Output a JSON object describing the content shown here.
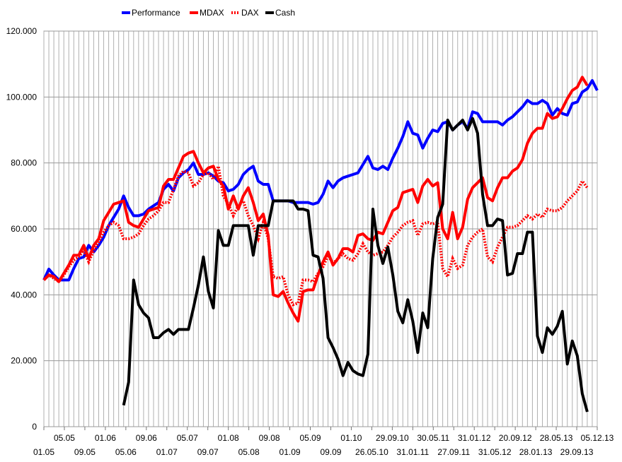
{
  "chart_data": {
    "type": "line",
    "title": "",
    "xlabel": "",
    "ylabel": "",
    "ylim": [
      0,
      120000
    ],
    "y_ticks": [
      "0",
      "20.000",
      "40.000",
      "60.000",
      "80.000",
      "100.000",
      "120.000"
    ],
    "x_tick_labels": [
      "01.05",
      "05.05",
      "09.05",
      "01.06",
      "05.06",
      "09.06",
      "01.07",
      "05.07",
      "09.07",
      "01.08",
      "05.08",
      "09.08",
      "01.09",
      "05.09",
      "09.09",
      "01.10",
      "26.05.10",
      "29.09.10",
      "31.01.11",
      "30.05.11",
      "27.09.11",
      "31.01.12",
      "31.05.12",
      "20.09.12",
      "28.01.13",
      "28.05.13",
      "29.09.13",
      "05.12.13"
    ],
    "grid": true,
    "legend_position": "top",
    "series": [
      {
        "name": "Performance",
        "color": "#0000ff",
        "style": "solid",
        "values": [
          44500,
          47800,
          46000,
          44500,
          44500,
          44500,
          48000,
          51000,
          51500,
          55000,
          53000,
          55000,
          57500,
          61000,
          63500,
          66000,
          70000,
          66500,
          64000,
          64000,
          64500,
          66000,
          67000,
          68000,
          72000,
          73500,
          71500,
          75500,
          77000,
          78000,
          80000,
          76500,
          76500,
          77000,
          76000,
          74500,
          74000,
          71500,
          72000,
          73500,
          76500,
          78000,
          79000,
          74500,
          73500,
          73500,
          68500,
          68500,
          68500,
          68500,
          68000,
          68000,
          68000,
          68000,
          67500,
          68000,
          70500,
          74500,
          72500,
          74500,
          75500,
          76000,
          76500,
          77000,
          79500,
          82000,
          78500,
          78000,
          79000,
          78000,
          81500,
          84500,
          88000,
          92500,
          89000,
          88500,
          84500,
          87500,
          90000,
          89500,
          92000,
          92500,
          90000,
          91500,
          92500,
          90500,
          95500,
          95000,
          92500,
          92500,
          92500,
          92500,
          91500,
          93000,
          94000,
          95500,
          97000,
          99000,
          98000,
          98000,
          99000,
          98000,
          94500,
          96500,
          95000,
          94500,
          98000,
          98500,
          101500,
          102500,
          105000,
          102000
        ]
      },
      {
        "name": "MDAX",
        "color": "#ff0000",
        "style": "solid",
        "values": [
          44500,
          46000,
          45500,
          44000,
          46500,
          49000,
          52000,
          52000,
          55000,
          51000,
          55000,
          57000,
          62500,
          65000,
          67500,
          68000,
          68500,
          62000,
          61000,
          60500,
          63000,
          65500,
          66000,
          66500,
          73000,
          75000,
          75000,
          78500,
          82000,
          83000,
          83500,
          80000,
          77000,
          78500,
          79000,
          75000,
          73000,
          66000,
          70000,
          66000,
          70000,
          72500,
          68000,
          62500,
          64500,
          58000,
          40000,
          39500,
          41000,
          37500,
          34500,
          32000,
          41000,
          41500,
          41500,
          46000,
          50000,
          53000,
          49000,
          51000,
          54000,
          54000,
          53000,
          58000,
          58500,
          57000,
          56500,
          59000,
          58500,
          62000,
          65500,
          66500,
          71000,
          71500,
          72000,
          68000,
          73000,
          75000,
          73000,
          74000,
          60000,
          57000,
          65000,
          57000,
          60500,
          69000,
          72500,
          74000,
          75500,
          69500,
          68500,
          72500,
          75500,
          75500,
          77500,
          78500,
          81000,
          86000,
          89000,
          90500,
          90500,
          95000,
          93500,
          94000,
          96500,
          99500,
          102000,
          103000,
          106000,
          103500
        ]
      },
      {
        "name": "DAX",
        "color": "#ff0000",
        "style": "dotted",
        "values": [
          44500,
          46000,
          45000,
          44000,
          46000,
          48500,
          50500,
          51500,
          53500,
          50000,
          53500,
          56000,
          59000,
          61000,
          62000,
          61000,
          57000,
          57000,
          57500,
          58500,
          61000,
          63000,
          64000,
          65500,
          68000,
          68000,
          72000,
          76000,
          77500,
          77000,
          73000,
          74000,
          76500,
          77000,
          75000,
          79000,
          70000,
          67500,
          64000,
          67000,
          68500,
          64000,
          61000,
          57000,
          62000,
          57000,
          45500,
          45000,
          45500,
          40000,
          37000,
          37500,
          44500,
          44500,
          44000,
          46500,
          48500,
          52000,
          49500,
          51000,
          52500,
          51000,
          50500,
          52500,
          55500,
          53000,
          52000,
          52500,
          53000,
          55000,
          57500,
          59000,
          61000,
          62000,
          62500,
          58000,
          61500,
          62000,
          61500,
          62000,
          48000,
          45500,
          51000,
          48000,
          49000,
          55000,
          57500,
          59000,
          60000,
          51500,
          50000,
          54500,
          57500,
          60500,
          60500,
          61000,
          62500,
          64000,
          63000,
          64500,
          63500,
          66000,
          65500,
          65500,
          66500,
          68500,
          70000,
          71500,
          74500,
          72500
        ]
      },
      {
        "name": "Cash",
        "color": "#000000",
        "style": "solid",
        "values": [
          null,
          null,
          null,
          null,
          null,
          null,
          null,
          null,
          null,
          null,
          null,
          null,
          null,
          null,
          null,
          null,
          6500,
          13500,
          44500,
          37000,
          34500,
          33000,
          27000,
          27000,
          28500,
          29500,
          28000,
          29500,
          29500,
          29500,
          36000,
          43000,
          51500,
          41000,
          36000,
          59500,
          55000,
          55000,
          61000,
          61000,
          61000,
          61000,
          52000,
          61000,
          61000,
          61000,
          68500,
          68500,
          68500,
          68500,
          68500,
          66000,
          66000,
          65500,
          52000,
          51500,
          45000,
          27000,
          24000,
          20500,
          15500,
          19500,
          17000,
          16000,
          15500,
          22000,
          66000,
          55000,
          49500,
          54500,
          46000,
          35000,
          31500,
          38500,
          32000,
          22500,
          34500,
          30000,
          51000,
          63500,
          67500,
          93000,
          90000,
          91500,
          93000,
          90000,
          93500,
          89000,
          70500,
          61000,
          61000,
          63000,
          62500,
          46000,
          46500,
          52500,
          52500,
          59000,
          59000,
          27500,
          22500,
          30000,
          28000,
          30500,
          35000,
          19000,
          26000,
          21500,
          10000,
          4500
        ]
      }
    ]
  }
}
